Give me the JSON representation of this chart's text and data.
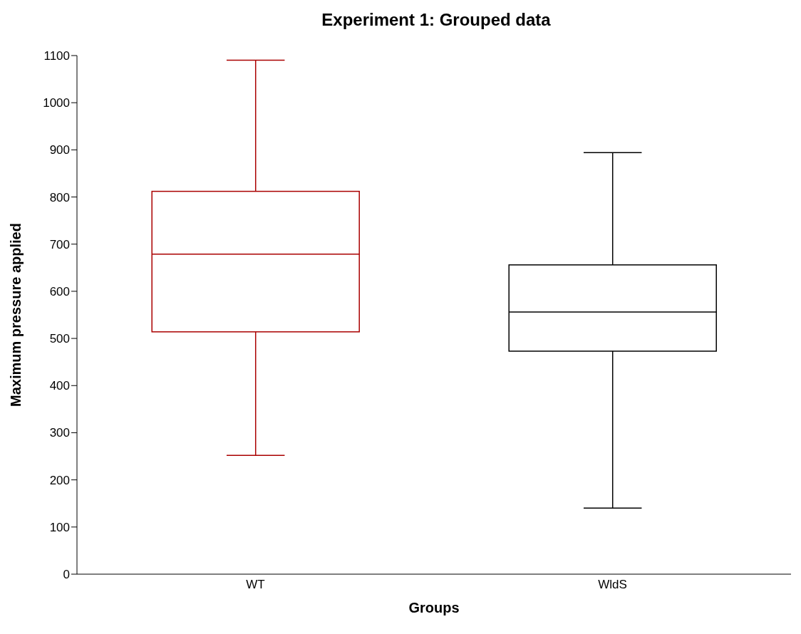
{
  "chart_data": {
    "type": "box",
    "title": "Experiment 1: Grouped data",
    "xlabel": "Groups",
    "ylabel": "Maximum pressure applied",
    "categories": [
      "WT",
      "WldS"
    ],
    "boxes": [
      {
        "low": 252,
        "q1": 514,
        "median": 679,
        "q3": 812,
        "high": 1090
      },
      {
        "low": 140,
        "q1": 473,
        "median": 556,
        "q3": 656,
        "high": 894
      }
    ],
    "colors": [
      "#aa0000",
      "#000000"
    ],
    "ylim": [
      0,
      1100
    ],
    "yticks": [
      0,
      100,
      200,
      300,
      400,
      500,
      600,
      700,
      800,
      900,
      1000,
      1100
    ]
  }
}
